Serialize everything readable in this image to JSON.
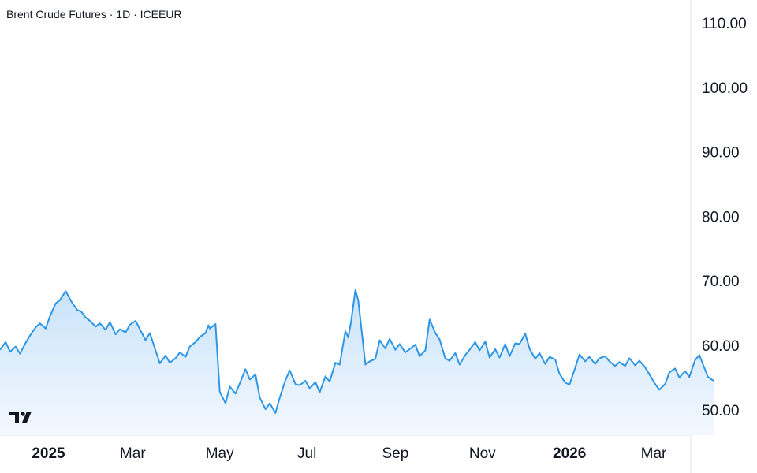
{
  "header": {
    "symbol": "Brent Crude Futures",
    "interval": "1D",
    "exchange": "ICEEUR",
    "separator": " · "
  },
  "icons": {
    "logo": "tradingview-logo-icon"
  },
  "colors": {
    "line": "#2e96e6",
    "fill_top": "#c9e3fa",
    "fill_bottom": "#f3f8fe",
    "axis": "#e0e3eb"
  },
  "chart_data": {
    "type": "area",
    "title": "Brent Crude Futures · 1D · ICEEUR",
    "xlabel": "",
    "ylabel": "",
    "ylim": [
      47,
      112
    ],
    "y_ticks": [
      "110.00",
      "100.00",
      "90.00",
      "80.00",
      "70.00",
      "60.00",
      "50.00"
    ],
    "y_tick_values": [
      110,
      100,
      90,
      80,
      70,
      60,
      50
    ],
    "x_ticks": [
      {
        "label": "2025",
        "date": "2025-01-01",
        "major": true
      },
      {
        "label": "Mar",
        "date": "2025-03-01",
        "major": false
      },
      {
        "label": "May",
        "date": "2025-05-01",
        "major": false
      },
      {
        "label": "Jul",
        "date": "2025-07-01",
        "major": false
      },
      {
        "label": "Sep",
        "date": "2025-09-01",
        "major": false
      },
      {
        "label": "Nov",
        "date": "2025-11-01",
        "major": false
      },
      {
        "label": "2026",
        "date": "2026-01-01",
        "major": true
      },
      {
        "label": "Mar",
        "date": "2026-03-01",
        "major": false
      }
    ],
    "x_range": [
      "2024-11-28",
      "2026-04-12"
    ],
    "grid": false,
    "series": [
      {
        "points": [
          [
            "2024-11-28",
            59.3
          ],
          [
            "2024-12-02",
            60.5
          ],
          [
            "2024-12-05",
            59.0
          ],
          [
            "2024-12-09",
            59.8
          ],
          [
            "2024-12-12",
            58.7
          ],
          [
            "2024-12-16",
            60.4
          ],
          [
            "2024-12-19",
            61.5
          ],
          [
            "2024-12-23",
            62.8
          ],
          [
            "2024-12-26",
            63.4
          ],
          [
            "2024-12-30",
            62.6
          ],
          [
            "2025-01-02",
            64.5
          ],
          [
            "2025-01-06",
            66.5
          ],
          [
            "2025-01-09",
            67.0
          ],
          [
            "2025-01-13",
            68.4
          ],
          [
            "2025-01-15",
            67.6
          ],
          [
            "2025-01-17",
            66.8
          ],
          [
            "2025-01-21",
            65.5
          ],
          [
            "2025-01-24",
            65.2
          ],
          [
            "2025-01-27",
            64.3
          ],
          [
            "2025-01-30",
            63.8
          ],
          [
            "2025-02-03",
            62.9
          ],
          [
            "2025-02-06",
            63.4
          ],
          [
            "2025-02-10",
            62.4
          ],
          [
            "2025-02-13",
            63.6
          ],
          [
            "2025-02-17",
            61.7
          ],
          [
            "2025-02-20",
            62.5
          ],
          [
            "2025-02-24",
            62.0
          ],
          [
            "2025-02-27",
            63.2
          ],
          [
            "2025-03-03",
            63.8
          ],
          [
            "2025-03-06",
            62.5
          ],
          [
            "2025-03-10",
            60.8
          ],
          [
            "2025-03-13",
            61.9
          ],
          [
            "2025-03-17",
            59.2
          ],
          [
            "2025-03-20",
            57.2
          ],
          [
            "2025-03-24",
            58.4
          ],
          [
            "2025-03-27",
            57.3
          ],
          [
            "2025-03-31",
            58.0
          ],
          [
            "2025-04-03",
            58.9
          ],
          [
            "2025-04-07",
            58.2
          ],
          [
            "2025-04-10",
            59.8
          ],
          [
            "2025-04-14",
            60.5
          ],
          [
            "2025-04-17",
            61.3
          ],
          [
            "2025-04-21",
            61.9
          ],
          [
            "2025-04-23",
            63.1
          ],
          [
            "2025-04-24",
            62.6
          ],
          [
            "2025-04-28",
            63.3
          ],
          [
            "2025-05-01",
            52.8
          ],
          [
            "2025-05-05",
            51.0
          ],
          [
            "2025-05-08",
            53.6
          ],
          [
            "2025-05-12",
            52.5
          ],
          [
            "2025-05-15",
            54.1
          ],
          [
            "2025-05-19",
            56.3
          ],
          [
            "2025-05-22",
            54.7
          ],
          [
            "2025-05-26",
            55.5
          ],
          [
            "2025-05-29",
            51.9
          ],
          [
            "2025-06-02",
            50.1
          ],
          [
            "2025-06-05",
            51.0
          ],
          [
            "2025-06-09",
            49.5
          ],
          [
            "2025-06-12",
            51.9
          ],
          [
            "2025-06-16",
            54.6
          ],
          [
            "2025-06-19",
            56.1
          ],
          [
            "2025-06-23",
            54.0
          ],
          [
            "2025-06-26",
            53.8
          ],
          [
            "2025-06-30",
            54.5
          ],
          [
            "2025-07-03",
            53.3
          ],
          [
            "2025-07-07",
            54.3
          ],
          [
            "2025-07-10",
            52.7
          ],
          [
            "2025-07-14",
            55.2
          ],
          [
            "2025-07-17",
            54.4
          ],
          [
            "2025-07-21",
            57.3
          ],
          [
            "2025-07-24",
            57.0
          ],
          [
            "2025-07-28",
            62.2
          ],
          [
            "2025-07-30",
            61.2
          ],
          [
            "2025-08-01",
            63.7
          ],
          [
            "2025-08-04",
            68.6
          ],
          [
            "2025-08-06",
            67.0
          ],
          [
            "2025-08-11",
            57.0
          ],
          [
            "2025-08-14",
            57.5
          ],
          [
            "2025-08-18",
            57.9
          ],
          [
            "2025-08-21",
            60.8
          ],
          [
            "2025-08-25",
            59.5
          ],
          [
            "2025-08-28",
            61.0
          ],
          [
            "2025-09-01",
            59.3
          ],
          [
            "2025-09-04",
            60.2
          ],
          [
            "2025-09-08",
            58.9
          ],
          [
            "2025-09-11",
            59.4
          ],
          [
            "2025-09-15",
            60.1
          ],
          [
            "2025-09-18",
            58.3
          ],
          [
            "2025-09-22",
            59.2
          ],
          [
            "2025-09-25",
            64.0
          ],
          [
            "2025-09-29",
            61.9
          ],
          [
            "2025-10-02",
            60.9
          ],
          [
            "2025-10-06",
            58.0
          ],
          [
            "2025-10-09",
            57.6
          ],
          [
            "2025-10-13",
            58.8
          ],
          [
            "2025-10-16",
            57.0
          ],
          [
            "2025-10-20",
            58.5
          ],
          [
            "2025-10-23",
            59.3
          ],
          [
            "2025-10-27",
            60.5
          ],
          [
            "2025-10-30",
            59.2
          ],
          [
            "2025-11-03",
            60.6
          ],
          [
            "2025-11-06",
            58.1
          ],
          [
            "2025-11-10",
            59.4
          ],
          [
            "2025-11-13",
            58.1
          ],
          [
            "2025-11-17",
            60.2
          ],
          [
            "2025-11-20",
            58.3
          ],
          [
            "2025-11-24",
            60.3
          ],
          [
            "2025-11-27",
            60.2
          ],
          [
            "2025-12-01",
            61.8
          ],
          [
            "2025-12-04",
            59.5
          ],
          [
            "2025-12-08",
            57.9
          ],
          [
            "2025-12-11",
            58.8
          ],
          [
            "2025-12-15",
            57.1
          ],
          [
            "2025-12-18",
            58.2
          ],
          [
            "2025-12-22",
            57.8
          ],
          [
            "2025-12-25",
            55.6
          ],
          [
            "2025-12-29",
            54.2
          ],
          [
            "2026-01-01",
            53.9
          ],
          [
            "2026-01-05",
            56.5
          ],
          [
            "2026-01-08",
            58.6
          ],
          [
            "2026-01-12",
            57.5
          ],
          [
            "2026-01-15",
            58.2
          ],
          [
            "2026-01-19",
            57.1
          ],
          [
            "2026-01-22",
            58.0
          ],
          [
            "2026-01-26",
            58.3
          ],
          [
            "2026-01-29",
            57.5
          ],
          [
            "2026-02-02",
            56.8
          ],
          [
            "2026-02-05",
            57.4
          ],
          [
            "2026-02-09",
            56.8
          ],
          [
            "2026-02-12",
            58.0
          ],
          [
            "2026-02-16",
            56.9
          ],
          [
            "2026-02-19",
            57.6
          ],
          [
            "2026-02-23",
            56.6
          ],
          [
            "2026-02-26",
            55.5
          ],
          [
            "2026-03-02",
            54.0
          ],
          [
            "2026-03-05",
            53.1
          ],
          [
            "2026-03-09",
            54.0
          ],
          [
            "2026-03-12",
            55.8
          ],
          [
            "2026-03-16",
            56.4
          ],
          [
            "2026-03-19",
            55.0
          ],
          [
            "2026-03-23",
            56.0
          ],
          [
            "2026-03-26",
            55.1
          ],
          [
            "2026-03-30",
            57.7
          ],
          [
            "2026-04-02",
            58.5
          ],
          [
            "2026-04-05",
            56.8
          ],
          [
            "2026-04-08",
            55.1
          ],
          [
            "2026-04-12",
            54.5
          ]
        ]
      }
    ]
  }
}
